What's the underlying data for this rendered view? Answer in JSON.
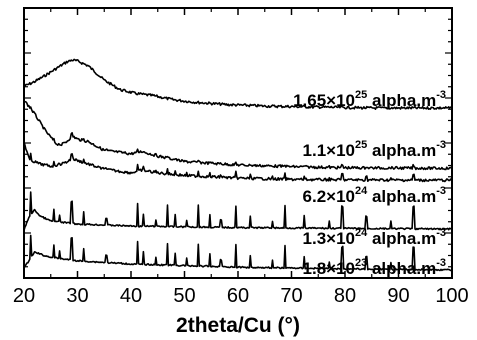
{
  "chart_data": {
    "type": "line",
    "xlabel": "2theta/Cu (°)",
    "ylabel": "",
    "xlim": [
      20,
      100
    ],
    "x_ticks": [
      "20",
      "30",
      "40",
      "50",
      "60",
      "70",
      "80",
      "90",
      "100"
    ],
    "y_ticklabels_shown": false,
    "grid": false,
    "legend": "none",
    "series": [
      {
        "name": "1.65×10^25 alpha.m^-3",
        "label": {
          "base": "1.65×10",
          "exp": "25",
          "unit": " alpha.m",
          "unit_exp": "-3"
        },
        "color": "#000000",
        "points": [
          [
            20,
            0.55
          ],
          [
            22,
            0.45
          ],
          [
            24,
            0.32
          ],
          [
            26,
            0.18
          ],
          [
            28,
            0.04
          ],
          [
            29,
            0.0
          ],
          [
            30,
            0.02
          ],
          [
            32,
            0.12
          ],
          [
            35,
            0.42
          ],
          [
            38,
            0.62
          ],
          [
            41,
            0.7
          ],
          [
            44,
            0.74
          ],
          [
            48,
            0.83
          ],
          [
            52,
            0.88
          ],
          [
            58,
            0.93
          ],
          [
            65,
            0.96
          ],
          [
            75,
            0.98
          ],
          [
            85,
            1.0
          ],
          [
            100,
            1.0
          ]
        ]
      },
      {
        "name": "1.1×10^25 alpha.m^-3",
        "label": {
          "base": "1.1×10",
          "exp": "25",
          "unit": " alpha.m",
          "unit_exp": "-3"
        },
        "color": "#000000",
        "points": [
          [
            20,
            0.0
          ],
          [
            22,
            0.25
          ],
          [
            24,
            0.55
          ],
          [
            26,
            0.78
          ],
          [
            27,
            0.8
          ],
          [
            28,
            0.74
          ],
          [
            29,
            0.64
          ],
          [
            30,
            0.7
          ],
          [
            32,
            0.74
          ],
          [
            35,
            0.9
          ],
          [
            40,
            0.96
          ],
          [
            42,
            0.92
          ],
          [
            45,
            1.0
          ],
          [
            50,
            1.1
          ],
          [
            60,
            1.16
          ],
          [
            70,
            1.19
          ],
          [
            80,
            1.21
          ],
          [
            100,
            1.22
          ]
        ]
      },
      {
        "name": "6.2×10^24 alpha.m^-3",
        "label": {
          "base": "6.2×10",
          "exp": "24",
          "unit": " alpha.m",
          "unit_exp": "-3"
        },
        "color": "#000000",
        "points": [
          [
            20,
            0.0
          ],
          [
            21,
            0.4
          ],
          [
            23,
            0.5
          ],
          [
            25,
            0.55
          ],
          [
            27,
            0.5
          ],
          [
            28,
            0.45
          ],
          [
            29,
            0.38
          ],
          [
            30,
            0.42
          ],
          [
            32,
            0.5
          ],
          [
            35,
            0.62
          ],
          [
            40,
            0.7
          ],
          [
            42,
            0.64
          ],
          [
            45,
            0.7
          ],
          [
            50,
            0.76
          ],
          [
            60,
            0.82
          ],
          [
            70,
            0.85
          ],
          [
            80,
            0.86
          ],
          [
            100,
            0.87
          ]
        ]
      },
      {
        "name": "1.3×10^24 alpha.m^-3",
        "label": {
          "base": "1.3×10",
          "exp": "24",
          "unit": " alpha.m",
          "unit_exp": "-3"
        },
        "color": "#000000",
        "points": [
          [
            20,
            1.0
          ],
          [
            21,
            0.3
          ],
          [
            22,
            0.0
          ],
          [
            23,
            0.3
          ],
          [
            25,
            0.55
          ],
          [
            30,
            0.7
          ],
          [
            40,
            0.8
          ],
          [
            60,
            0.88
          ],
          [
            80,
            0.92
          ],
          [
            100,
            0.95
          ]
        ]
      },
      {
        "name": "1.8×10^23 alpha.m^-3",
        "label": {
          "base": "1.8×10",
          "exp": "23",
          "unit": " alpha.m",
          "unit_exp": "-3"
        },
        "color": "#000000",
        "points": [
          [
            20,
            0.9
          ],
          [
            22,
            0.5
          ],
          [
            24,
            0.6
          ],
          [
            26,
            0.65
          ],
          [
            30,
            0.72
          ],
          [
            40,
            0.8
          ],
          [
            60,
            0.88
          ],
          [
            80,
            0.92
          ],
          [
            100,
            0.95
          ]
        ]
      }
    ],
    "peaks": [
      21.2,
      25.6,
      26.6,
      28.9,
      31.2,
      35.4,
      41.2,
      42.3,
      44.6,
      46.8,
      48.3,
      50.4,
      52.6,
      54.7,
      56.8,
      59.6,
      62.3,
      66.5,
      68.8,
      72.4,
      77.0,
      79.5,
      84.0,
      88.6,
      92.8
    ]
  }
}
